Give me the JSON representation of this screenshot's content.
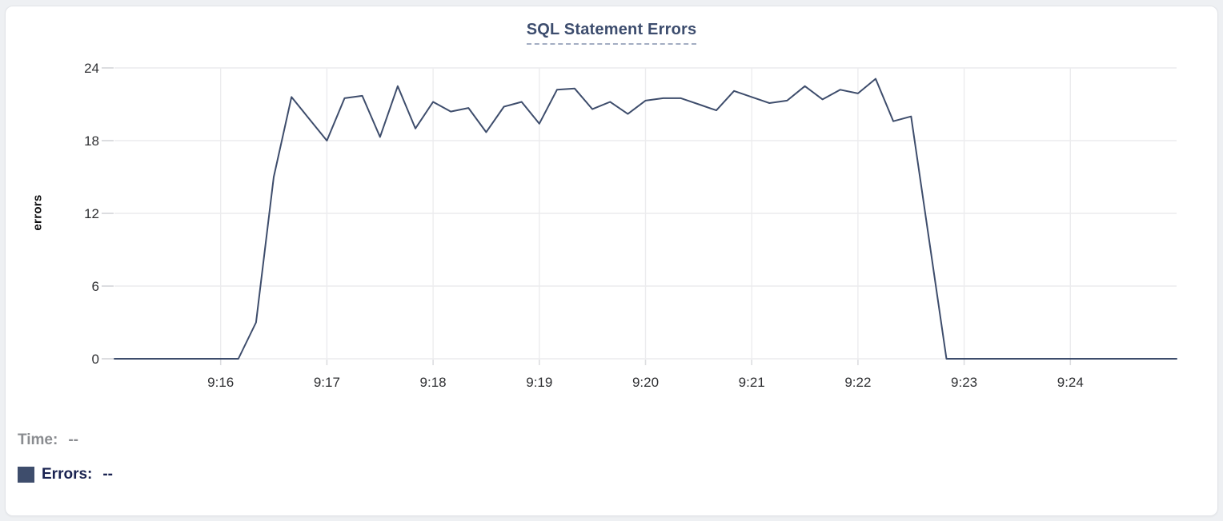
{
  "header": {
    "title": "SQL Statement Errors"
  },
  "legend": {
    "time_label": "Time:",
    "time_value": "--",
    "errors_label": "Errors:",
    "errors_value": "--",
    "swatch_color": "#3e4d6c"
  },
  "chart_data": {
    "type": "line",
    "title": "SQL Statement Errors",
    "xlabel": "",
    "ylabel": "errors",
    "ylim": [
      0,
      24
    ],
    "y_ticks": [
      0,
      6,
      12,
      18,
      24
    ],
    "x_ticks": [
      "9:16",
      "9:17",
      "9:18",
      "9:19",
      "9:20",
      "9:21",
      "9:22",
      "9:23",
      "9:24"
    ],
    "x_domain": [
      "9:15:00",
      "9:25:00"
    ],
    "grid": true,
    "legend_position": "bottom-left",
    "series": [
      {
        "name": "Errors",
        "color": "#3e4d6c",
        "start_time": "9:15:00",
        "interval_seconds": 10,
        "values": [
          0,
          0,
          0,
          0,
          0,
          0,
          0,
          0,
          3,
          15,
          21.6,
          19.8,
          18,
          21.5,
          21.7,
          18.3,
          22.5,
          19,
          21.2,
          20.4,
          20.7,
          18.7,
          20.8,
          21.2,
          19.4,
          22.2,
          22.3,
          20.6,
          21.2,
          20.2,
          21.3,
          21.5,
          21.5,
          21,
          20.5,
          22.1,
          21.6,
          21.1,
          21.3,
          22.5,
          21.4,
          22.2,
          21.9,
          23.1,
          19.6,
          20,
          10,
          0,
          0,
          0,
          0,
          0,
          0,
          0,
          0,
          0,
          0,
          0,
          0,
          0,
          0
        ]
      }
    ]
  },
  "colors": {
    "accent_line": "#3e4d6c",
    "grid": "#ececee",
    "tick_mark": "#dcdde0",
    "axis_text": "#2f3033",
    "title_text": "#3d4d6e",
    "title_underline": "#a3adc2",
    "muted_text": "#8a8c90",
    "legend_text": "#1a2351",
    "card_border": "#e2e4e8",
    "page_bg": "#eef0f3"
  }
}
